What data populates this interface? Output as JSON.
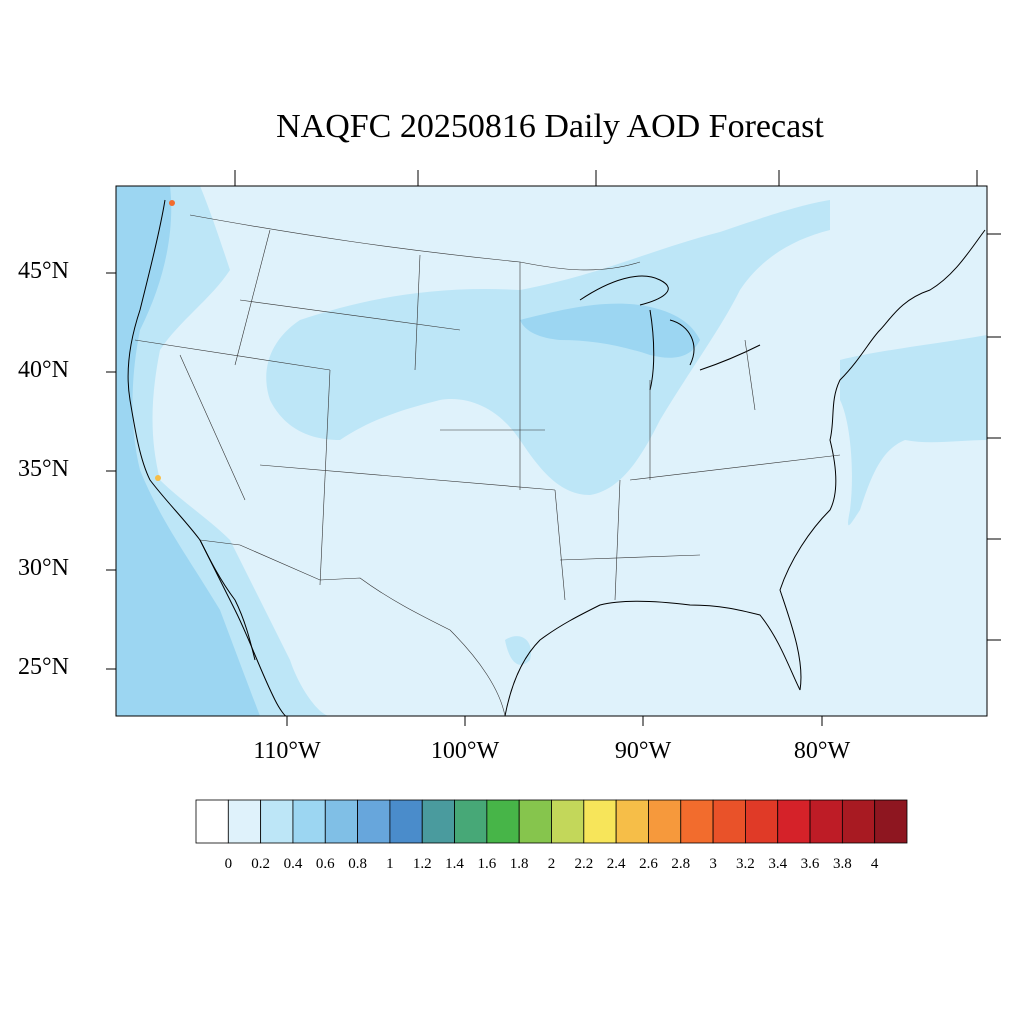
{
  "title": "NAQFC 20250816 Daily AOD Forecast",
  "lat_labels": [
    {
      "text": "45°N",
      "lat": 45
    },
    {
      "text": "40°N",
      "lat": 40
    },
    {
      "text": "35°N",
      "lat": 35
    },
    {
      "text": "30°N",
      "lat": 30
    },
    {
      "text": "25°N",
      "lat": 25
    }
  ],
  "lon_labels": [
    {
      "text": "110°W",
      "lon": -110
    },
    {
      "text": "100°W",
      "lon": -100
    },
    {
      "text": "90°W",
      "lon": -90
    },
    {
      "text": "80°W",
      "lon": -80
    }
  ],
  "colorbar": {
    "levels": [
      "0",
      "0.2",
      "0.4",
      "0.6",
      "0.8",
      "1",
      "1.2",
      "1.4",
      "1.6",
      "1.8",
      "2",
      "2.2",
      "2.4",
      "2.6",
      "2.8",
      "3",
      "3.2",
      "3.4",
      "3.6",
      "3.8",
      "4"
    ],
    "colors": [
      "#ffffff",
      "#dff2fb",
      "#bde6f7",
      "#9cd6f2",
      "#80bfe6",
      "#67a6dc",
      "#4a8ccb",
      "#4a9b9e",
      "#47a877",
      "#47b548",
      "#86c54d",
      "#c3d75a",
      "#f7e55a",
      "#f6be48",
      "#f6993c",
      "#f26c2d",
      "#e95229",
      "#e03a27",
      "#d52229",
      "#be1c26",
      "#a81a22",
      "#8e1620"
    ]
  },
  "map_colors": {
    "background": "#dff2fb",
    "band_light": "#bde6f7",
    "band_mid": "#9cd6f2",
    "band_dark": "#80bfe6",
    "hotspot": "#f26c2d"
  }
}
